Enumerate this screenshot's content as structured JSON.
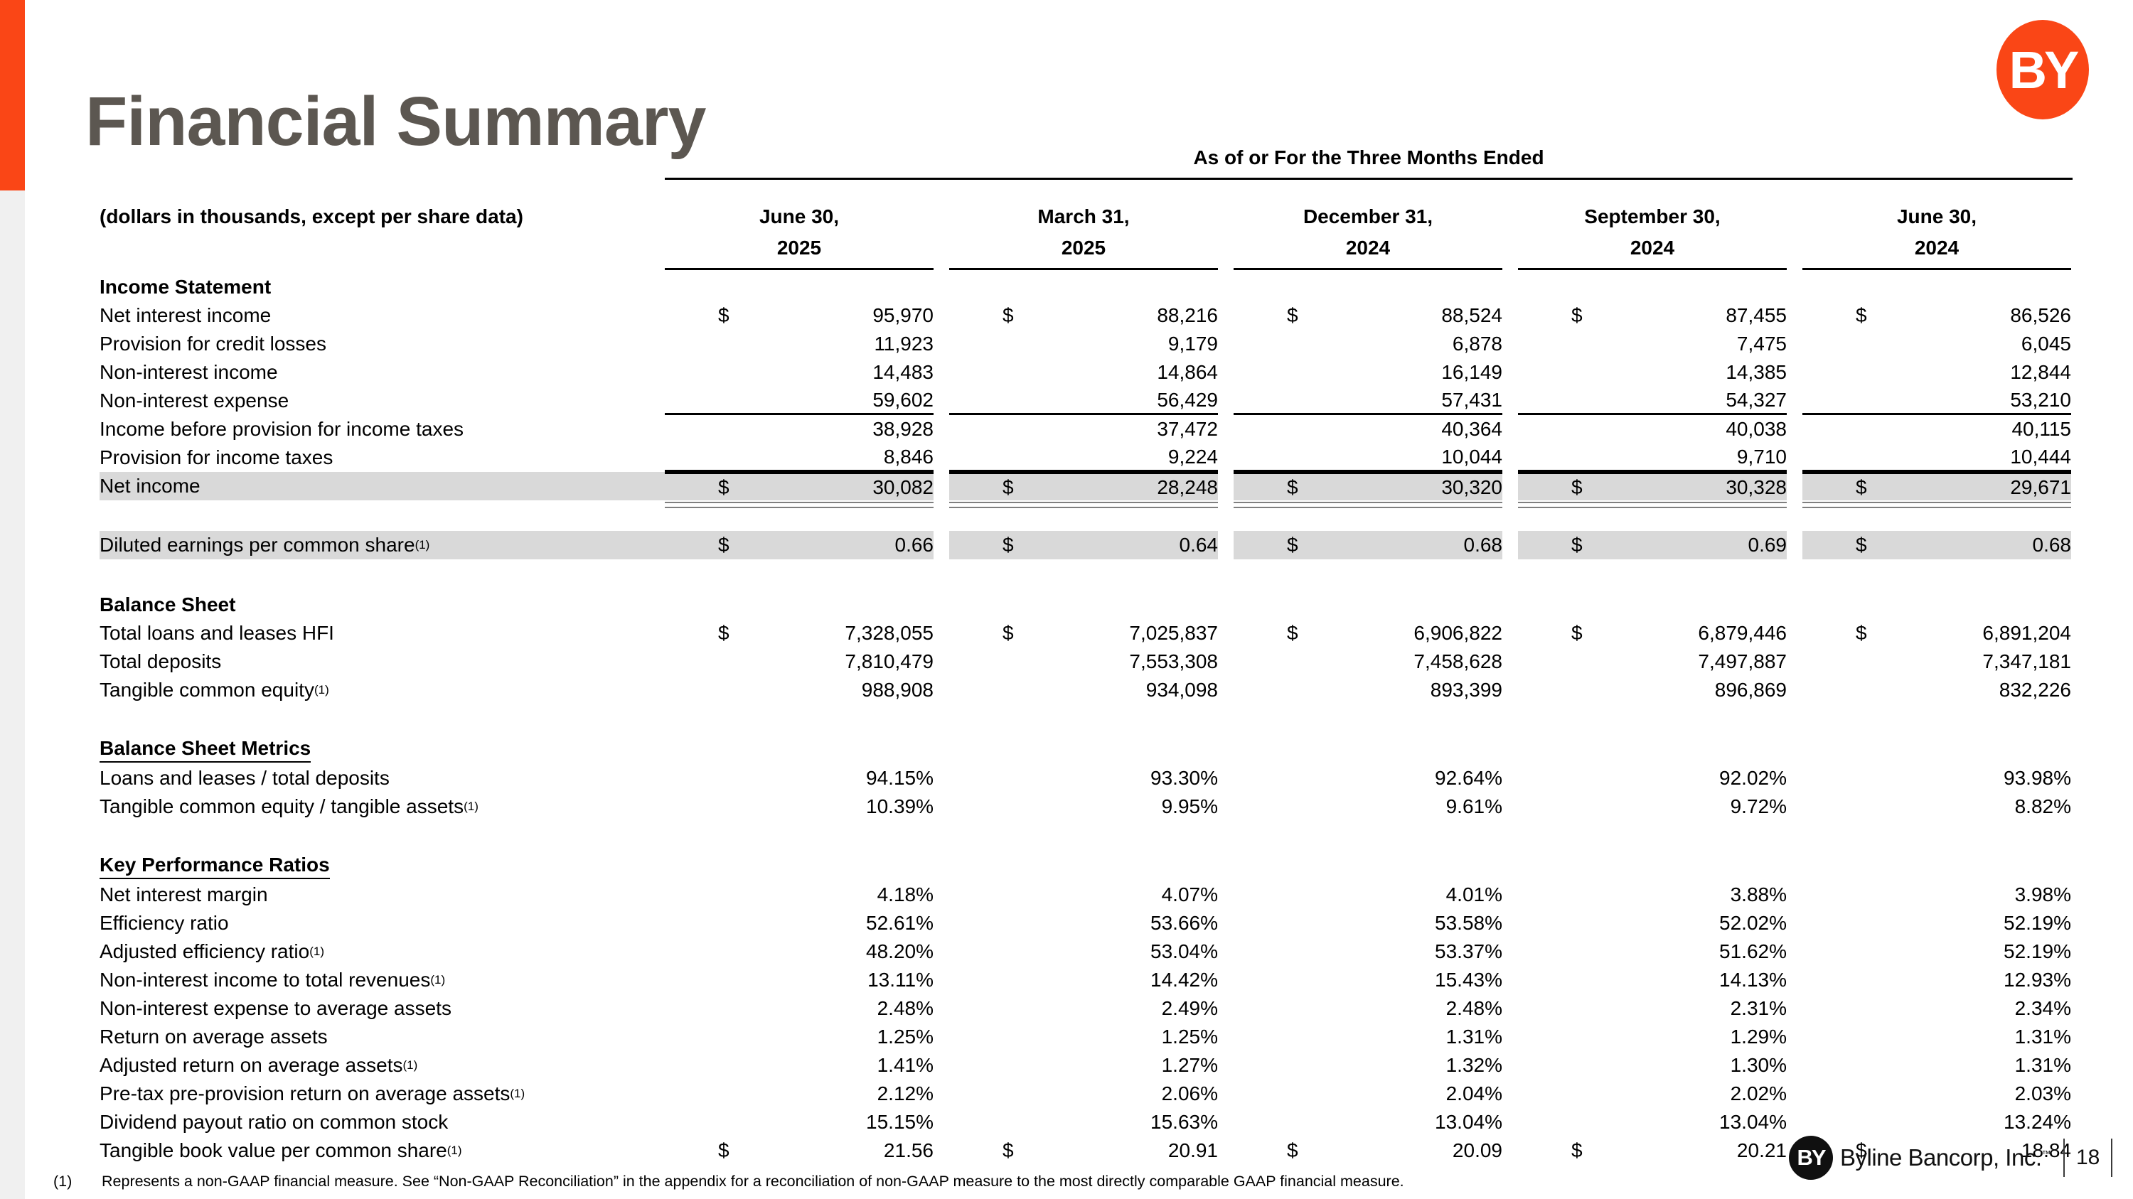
{
  "slide": {
    "title": "Financial Summary",
    "top_logo_text": "BY",
    "footnote": {
      "marker": "(1)",
      "text": "Represents a non-GAAP financial measure.  See “Non-GAAP Reconciliation” in the appendix for a reconciliation of non-GAAP measure to the most directly comparable GAAP financial measure."
    },
    "footer": {
      "logo_text": "BY",
      "company": "Byline Bancorp, Inc.",
      "trademark": "™",
      "page_number": "18"
    }
  },
  "colors": {
    "accent_orange": "#FA4616",
    "highlight_gray": "#D9D9D9",
    "title_gray": "#5C5751"
  },
  "table": {
    "dollar_sign": "$",
    "header": {
      "span_label": "As of or For the Three Months Ended",
      "left_label": "(dollars in thousands, except per share data)",
      "columns": [
        {
          "line1": "June 30,",
          "line2": "2025"
        },
        {
          "line1": "March 31,",
          "line2": "2025"
        },
        {
          "line1": "December 31,",
          "line2": "2024"
        },
        {
          "line1": "September 30,",
          "line2": "2024"
        },
        {
          "line1": "June 30,",
          "line2": "2024"
        }
      ]
    },
    "sections": [
      {
        "heading": "Income Statement",
        "heading_underline": false,
        "rows": [
          {
            "label": "Net interest income",
            "dollar": true,
            "values": [
              "95,970",
              "88,216",
              "88,524",
              "87,455",
              "86,526"
            ]
          },
          {
            "label": "Provision for credit losses",
            "values": [
              "11,923",
              "9,179",
              "6,878",
              "7,475",
              "6,045"
            ]
          },
          {
            "label": "Non-interest income",
            "values": [
              "14,483",
              "14,864",
              "16,149",
              "14,385",
              "12,844"
            ]
          },
          {
            "label": "Non-interest expense",
            "rule_below": true,
            "values": [
              "59,602",
              "56,429",
              "57,431",
              "54,327",
              "53,210"
            ]
          },
          {
            "label": "Income before provision for income taxes",
            "values": [
              "38,928",
              "37,472",
              "40,364",
              "40,038",
              "40,115"
            ]
          },
          {
            "label": "Provision for income taxes",
            "rule_below": true,
            "values": [
              "8,846",
              "9,224",
              "10,044",
              "9,710",
              "10,444"
            ]
          },
          {
            "label": "Net income",
            "dollar": true,
            "highlight": true,
            "rule_above": true,
            "double_rule_below": true,
            "values": [
              "30,082",
              "28,248",
              "30,320",
              "30,328",
              "29,671"
            ]
          }
        ]
      },
      {
        "heading": null,
        "rows": [
          {
            "label": "Diluted earnings per common share",
            "sup": "(1)",
            "dollar": true,
            "highlight": true,
            "values": [
              "0.66",
              "0.64",
              "0.68",
              "0.69",
              "0.68"
            ]
          }
        ]
      },
      {
        "heading": "Balance Sheet",
        "heading_underline": false,
        "rows": [
          {
            "label": "Total loans and leases HFI",
            "dollar": true,
            "values": [
              "7,328,055",
              "7,025,837",
              "6,906,822",
              "6,879,446",
              "6,891,204"
            ]
          },
          {
            "label": "Total deposits",
            "values": [
              "7,810,479",
              "7,553,308",
              "7,458,628",
              "7,497,887",
              "7,347,181"
            ]
          },
          {
            "label": "Tangible common equity",
            "sup": "(1)",
            "values": [
              "988,908",
              "934,098",
              "893,399",
              "896,869",
              "832,226"
            ]
          }
        ]
      },
      {
        "heading": "Balance Sheet Metrics",
        "heading_underline": true,
        "rows": [
          {
            "label": "Loans and leases / total deposits",
            "values": [
              "94.15%",
              "93.30%",
              "92.64%",
              "92.02%",
              "93.98%"
            ]
          },
          {
            "label": "Tangible common equity / tangible assets",
            "sup": "(1)",
            "values": [
              "10.39%",
              "9.95%",
              "9.61%",
              "9.72%",
              "8.82%"
            ]
          }
        ]
      },
      {
        "heading": "Key Performance Ratios",
        "heading_underline": true,
        "rows": [
          {
            "label": "Net interest margin",
            "values": [
              "4.18%",
              "4.07%",
              "4.01%",
              "3.88%",
              "3.98%"
            ]
          },
          {
            "label": "Efficiency ratio",
            "values": [
              "52.61%",
              "53.66%",
              "53.58%",
              "52.02%",
              "52.19%"
            ]
          },
          {
            "label": "Adjusted efficiency ratio",
            "sup": "(1)",
            "values": [
              "48.20%",
              "53.04%",
              "53.37%",
              "51.62%",
              "52.19%"
            ]
          },
          {
            "label": "Non-interest income to total revenues",
            "sup": "(1)",
            "values": [
              "13.11%",
              "14.42%",
              "15.43%",
              "14.13%",
              "12.93%"
            ]
          },
          {
            "label": "Non-interest expense to average assets",
            "values": [
              "2.48%",
              "2.49%",
              "2.48%",
              "2.31%",
              "2.34%"
            ]
          },
          {
            "label": "Return on average assets",
            "values": [
              "1.25%",
              "1.25%",
              "1.31%",
              "1.29%",
              "1.31%"
            ]
          },
          {
            "label": "Adjusted return on average assets",
            "sup": "(1)",
            "values": [
              "1.41%",
              "1.27%",
              "1.32%",
              "1.30%",
              "1.31%"
            ]
          },
          {
            "label": "Pre-tax pre-provision return on average assets ",
            "sup": "(1)",
            "values": [
              "2.12%",
              "2.06%",
              "2.04%",
              "2.02%",
              "2.03%"
            ]
          },
          {
            "label": "Dividend payout ratio on common stock",
            "values": [
              "15.15%",
              "15.63%",
              "13.04%",
              "13.04%",
              "13.24%"
            ]
          },
          {
            "label": "Tangible book value per common share",
            "sup": "(1)",
            "dollar": true,
            "values": [
              "21.56",
              "20.91",
              "20.09",
              "20.21",
              "18.84"
            ]
          }
        ]
      }
    ]
  }
}
